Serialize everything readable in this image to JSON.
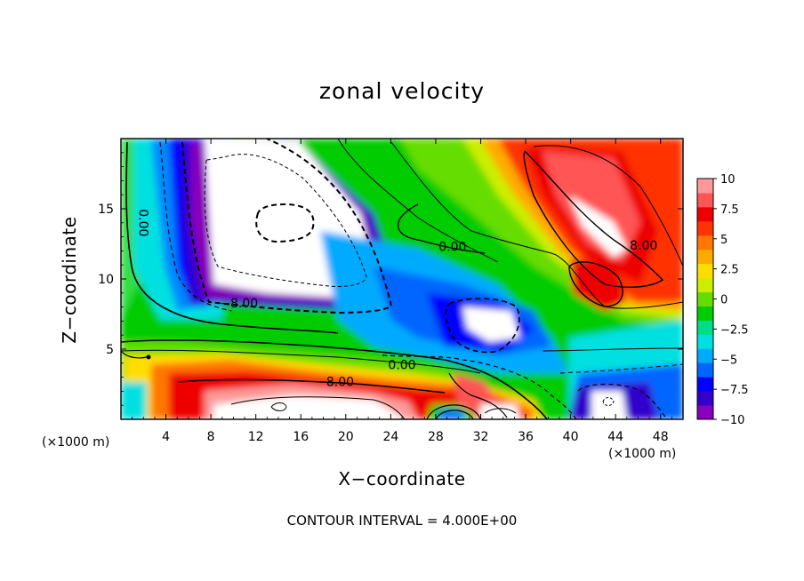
{
  "chart_data": {
    "type": "heatmap",
    "title": "zonal velocity",
    "xlabel": "X−coordinate",
    "ylabel": "Z−coordinate",
    "x_units": "(×1000 m)",
    "xlim": [
      0,
      50
    ],
    "ylim": [
      0,
      20
    ],
    "x_ticks": [
      4,
      8,
      12,
      16,
      20,
      24,
      28,
      32,
      36,
      40,
      44,
      48
    ],
    "y_ticks": [
      5,
      10,
      15
    ],
    "colorbar": {
      "range": [
        -10,
        10
      ],
      "ticks": [
        "10",
        "7.5",
        "5",
        "2.5",
        "0",
        "−2.5",
        "−5",
        "−7.5",
        "−10"
      ],
      "colors": [
        "#8800bb",
        "#3300cc",
        "#0000ff",
        "#0066ff",
        "#00aaff",
        "#00e0e0",
        "#00dd88",
        "#00cc00",
        "#66dd00",
        "#ccee00",
        "#ffdd00",
        "#ffaa00",
        "#ff7700",
        "#ff3300",
        "#ee0000",
        "#ff5555",
        "#ff9999"
      ]
    },
    "contour_labels": [
      {
        "text": "0.00",
        "x": 2,
        "z": 14
      },
      {
        "text": "0.00",
        "x": 29.5,
        "z": 12.3
      },
      {
        "text": "8.00",
        "x": 46.5,
        "z": 12.4
      },
      {
        "text": "−8.00",
        "x": 10.5,
        "z": 8.3
      },
      {
        "text": "0.00",
        "x": 25,
        "z": 3.9
      },
      {
        "text": "8.00",
        "x": 19.5,
        "z": 2.7
      }
    ],
    "contour_interval": "4.000E+00"
  },
  "footer": "CONTOUR INTERVAL = 4.000E+00"
}
